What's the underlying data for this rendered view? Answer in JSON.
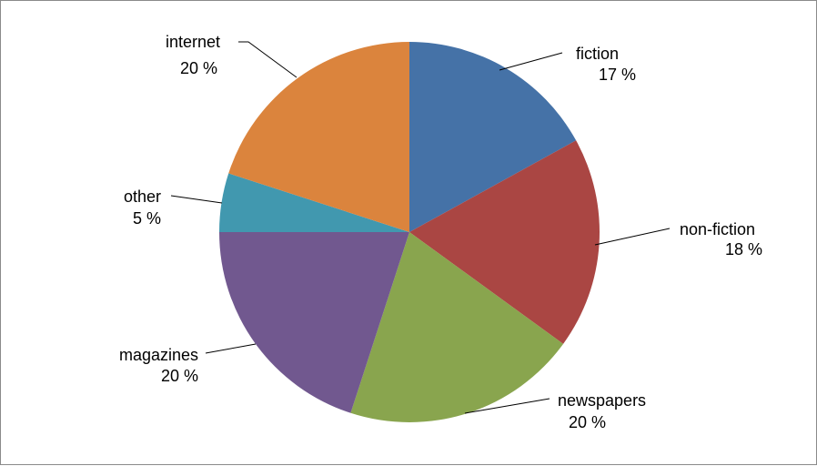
{
  "chart_data": {
    "type": "pie",
    "title": "",
    "legend": "none",
    "slices": [
      {
        "label": "fiction",
        "value": 17,
        "value_label": "17 %",
        "color": "#4572A7"
      },
      {
        "label": "non-fiction",
        "value": 18,
        "value_label": "18 %",
        "color": "#AA4643"
      },
      {
        "label": "newspapers",
        "value": 20,
        "value_label": "20 %",
        "color": "#89A54E"
      },
      {
        "label": "magazines",
        "value": 20,
        "value_label": "20 %",
        "color": "#71588F"
      },
      {
        "label": "other",
        "value": 5,
        "value_label": "5 %",
        "color": "#4198AF"
      },
      {
        "label": "internet",
        "value": 20,
        "value_label": "20 %",
        "color": "#DB843D"
      }
    ]
  }
}
